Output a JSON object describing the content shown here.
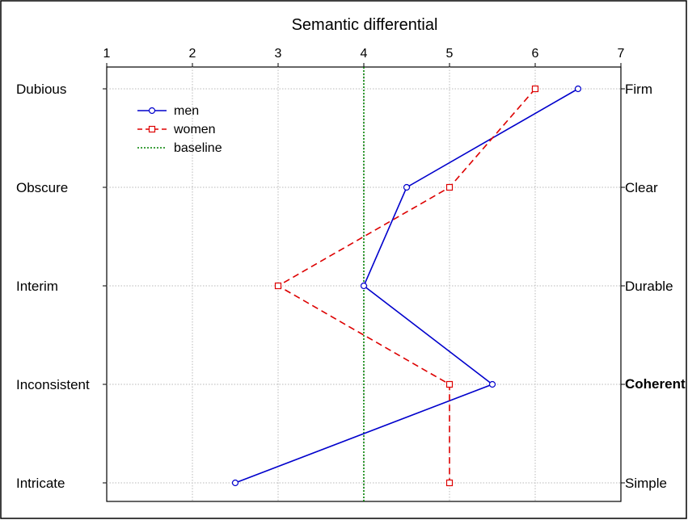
{
  "chart_data": {
    "type": "line",
    "title": "Semantic differential",
    "xlim": [
      1,
      7
    ],
    "x_ticks": [
      "1",
      "2",
      "3",
      "4",
      "5",
      "6",
      "7"
    ],
    "left_labels": [
      "Dubious",
      "Obscure",
      "Interim",
      "Inconsistent",
      "Intricate"
    ],
    "right_labels": [
      "Firm",
      "Clear",
      "Durable",
      "Coherent",
      "Simple"
    ],
    "grid": true,
    "legend_position": "top-left",
    "series": [
      {
        "name": "men",
        "values": [
          6.5,
          4.5,
          4.0,
          5.5,
          2.5
        ],
        "color": "#0000cc",
        "style": "solid",
        "marker": "circle"
      },
      {
        "name": "women",
        "values": [
          6.0,
          5.0,
          3.0,
          5.0,
          5.0
        ],
        "color": "#dd0000",
        "style": "dashed",
        "marker": "square"
      }
    ],
    "baseline": {
      "name": "baseline",
      "value": 4,
      "color": "#008000",
      "style": "dotted"
    }
  }
}
